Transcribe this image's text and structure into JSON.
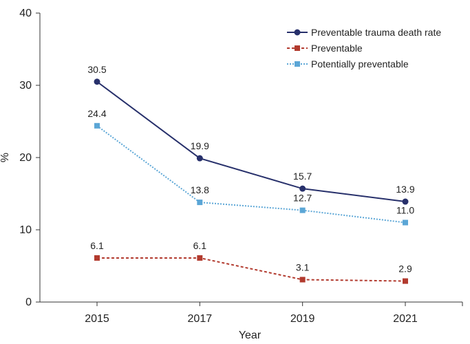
{
  "chart_data": {
    "type": "line",
    "title": "",
    "xlabel": "Year",
    "ylabel": "%",
    "x": [
      "2015",
      "2017",
      "2019",
      "2021"
    ],
    "ylim": [
      0,
      40
    ],
    "yticks": [
      0,
      10,
      20,
      30,
      40
    ],
    "grid": false,
    "legend_position": "top-right",
    "series": [
      {
        "name": "Preventable trauma death rate",
        "values": [
          30.5,
          19.9,
          15.7,
          13.9
        ],
        "labels": [
          "30.5",
          "19.9",
          "15.7",
          "13.9"
        ],
        "color": "#27306b",
        "line_style": "solid",
        "marker": "circle"
      },
      {
        "name": "Preventable",
        "values": [
          6.1,
          6.1,
          3.1,
          2.9
        ],
        "labels": [
          "6.1",
          "6.1",
          "3.1",
          "2.9"
        ],
        "color": "#b23a2e",
        "line_style": "dashed",
        "marker": "square"
      },
      {
        "name": "Potentially preventable",
        "values": [
          24.4,
          13.8,
          12.7,
          11.0
        ],
        "labels": [
          "24.4",
          "13.8",
          "12.7",
          "11.0"
        ],
        "color": "#5ba6d6",
        "line_style": "dotted",
        "marker": "square"
      }
    ]
  }
}
